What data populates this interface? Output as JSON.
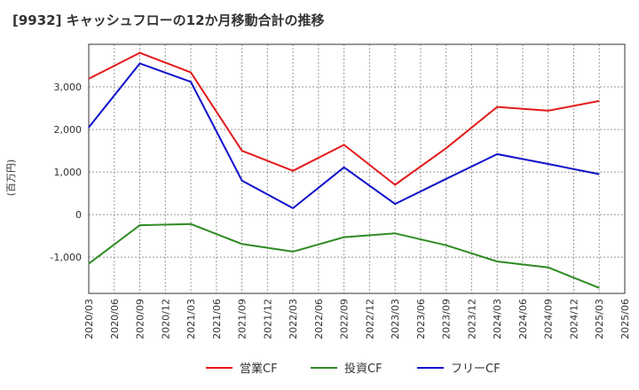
{
  "chart_data": {
    "type": "line",
    "title": "[9932]  キャッシュフローの12か月移動合計の推移",
    "ylabel": "(百万円)",
    "xlabel": "",
    "x_ticks": [
      "2020/03",
      "2020/06",
      "2020/09",
      "2020/12",
      "2021/03",
      "2021/06",
      "2021/09",
      "2021/12",
      "2022/03",
      "2022/06",
      "2022/09",
      "2022/12",
      "2023/03",
      "2023/06",
      "2023/09",
      "2023/12",
      "2024/03",
      "2024/06",
      "2024/09",
      "2024/12",
      "2025/03",
      "2025/06"
    ],
    "y_ticks": [
      3000,
      2000,
      1000,
      0,
      -1000
    ],
    "y_tick_labels": [
      "3,000",
      "2,000",
      "1,000",
      "0",
      "-1,000"
    ],
    "ylim": [
      -1850,
      4000
    ],
    "grid": true,
    "legend_position": "bottom",
    "series": [
      {
        "name": "営業CF",
        "color": "#e31a1c",
        "x": [
          "2020/03",
          "2020/09",
          "2021/03",
          "2021/09",
          "2022/03",
          "2022/09",
          "2023/03",
          "2023/09",
          "2024/03",
          "2024/09",
          "2025/03"
        ],
        "values": [
          3190,
          3800,
          3340,
          1500,
          1030,
          1640,
          700,
          1560,
          2530,
          2440,
          2670
        ]
      },
      {
        "name": "投資CF",
        "color": "#2e8b22",
        "x": [
          "2020/03",
          "2020/09",
          "2021/03",
          "2021/09",
          "2022/03",
          "2022/09",
          "2023/03",
          "2023/09",
          "2024/03",
          "2024/09",
          "2025/03"
        ],
        "values": [
          -1150,
          -250,
          -220,
          -690,
          -870,
          -530,
          -440,
          -720,
          -1100,
          -1240,
          -1720
        ]
      },
      {
        "name": "フリーCF",
        "color": "#1010cc",
        "x": [
          "2020/03",
          "2020/09",
          "2021/03",
          "2021/09",
          "2022/03",
          "2022/09",
          "2023/03",
          "2023/09",
          "2024/03",
          "2024/09",
          "2025/03"
        ],
        "values": [
          2050,
          3550,
          3120,
          800,
          150,
          1110,
          250,
          840,
          1420,
          1190,
          950
        ]
      }
    ]
  }
}
